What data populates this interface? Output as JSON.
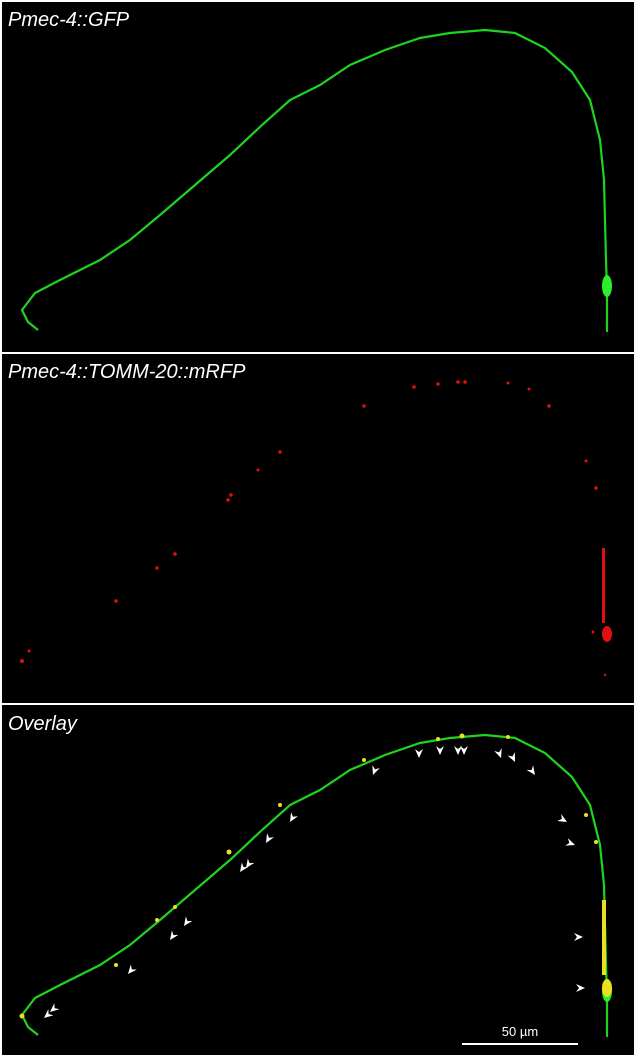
{
  "panels": [
    {
      "label": "Pmec-4::GFP"
    },
    {
      "label": "Pmec-4::TOMM-20::mRFP"
    },
    {
      "label": "Overlay"
    }
  ],
  "scale_bar": {
    "label": "50 µm"
  }
}
